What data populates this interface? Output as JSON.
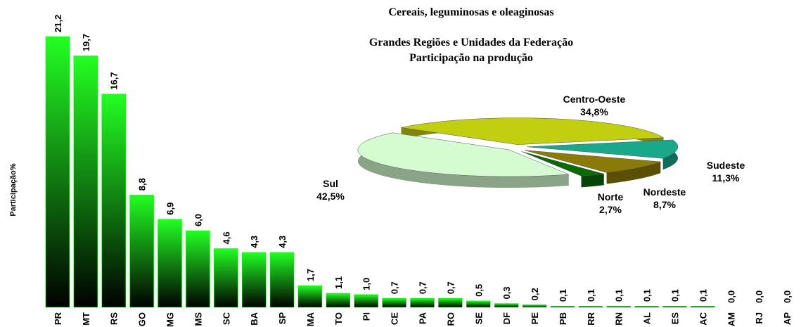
{
  "chart_data": [
    {
      "type": "bar",
      "y_label": "Participação%",
      "color": "#00ff00",
      "categories": [
        "PR",
        "MT",
        "RS",
        "GO",
        "MG",
        "MS",
        "SC",
        "BA",
        "SP",
        "MA",
        "TO",
        "PI",
        "CE",
        "PA",
        "RO",
        "SE",
        "DF",
        "PE",
        "PB",
        "RR",
        "RN",
        "AL",
        "ES",
        "AC",
        "AM",
        "RJ",
        "AP"
      ],
      "values": [
        21.2,
        19.7,
        16.7,
        8.8,
        6.9,
        6.0,
        4.6,
        4.3,
        4.3,
        1.7,
        1.1,
        1.0,
        0.7,
        0.7,
        0.7,
        0.5,
        0.3,
        0.2,
        0.1,
        0.1,
        0.1,
        0.1,
        0.1,
        0.1,
        0.0,
        0.0,
        0.0
      ],
      "value_labels": [
        "21,2",
        "19,7",
        "16,7",
        "8,8",
        "6,9",
        "6,0",
        "4,6",
        "4,3",
        "4,3",
        "1,7",
        "1,1",
        "1,0",
        "0,7",
        "0,7",
        "0,7",
        "0,5",
        "0,3",
        "0,2",
        "0,1",
        "0,1",
        "0,1",
        "0,1",
        "0,1",
        "0,1",
        "0,0",
        "0,0",
        "0,0"
      ]
    },
    {
      "type": "pie",
      "title": [
        "Cereais, leguminosas e oleaginosas",
        "Grandes Regiões e Unidades da Federação",
        "Participação na produção"
      ],
      "categories": [
        "Sudeste",
        "Nordeste",
        "Norte",
        "Sul",
        "Centro-Oeste"
      ],
      "values": [
        11.3,
        8.7,
        2.7,
        42.5,
        34.8
      ],
      "value_labels": [
        "11,3%",
        "8,7%",
        "2,7%",
        "42,5%",
        "34,8%"
      ],
      "colors": [
        "#1aa88a",
        "#8a7a08",
        "#0a6a0a",
        "#d4fcd0",
        "#c2cf10"
      ]
    }
  ]
}
